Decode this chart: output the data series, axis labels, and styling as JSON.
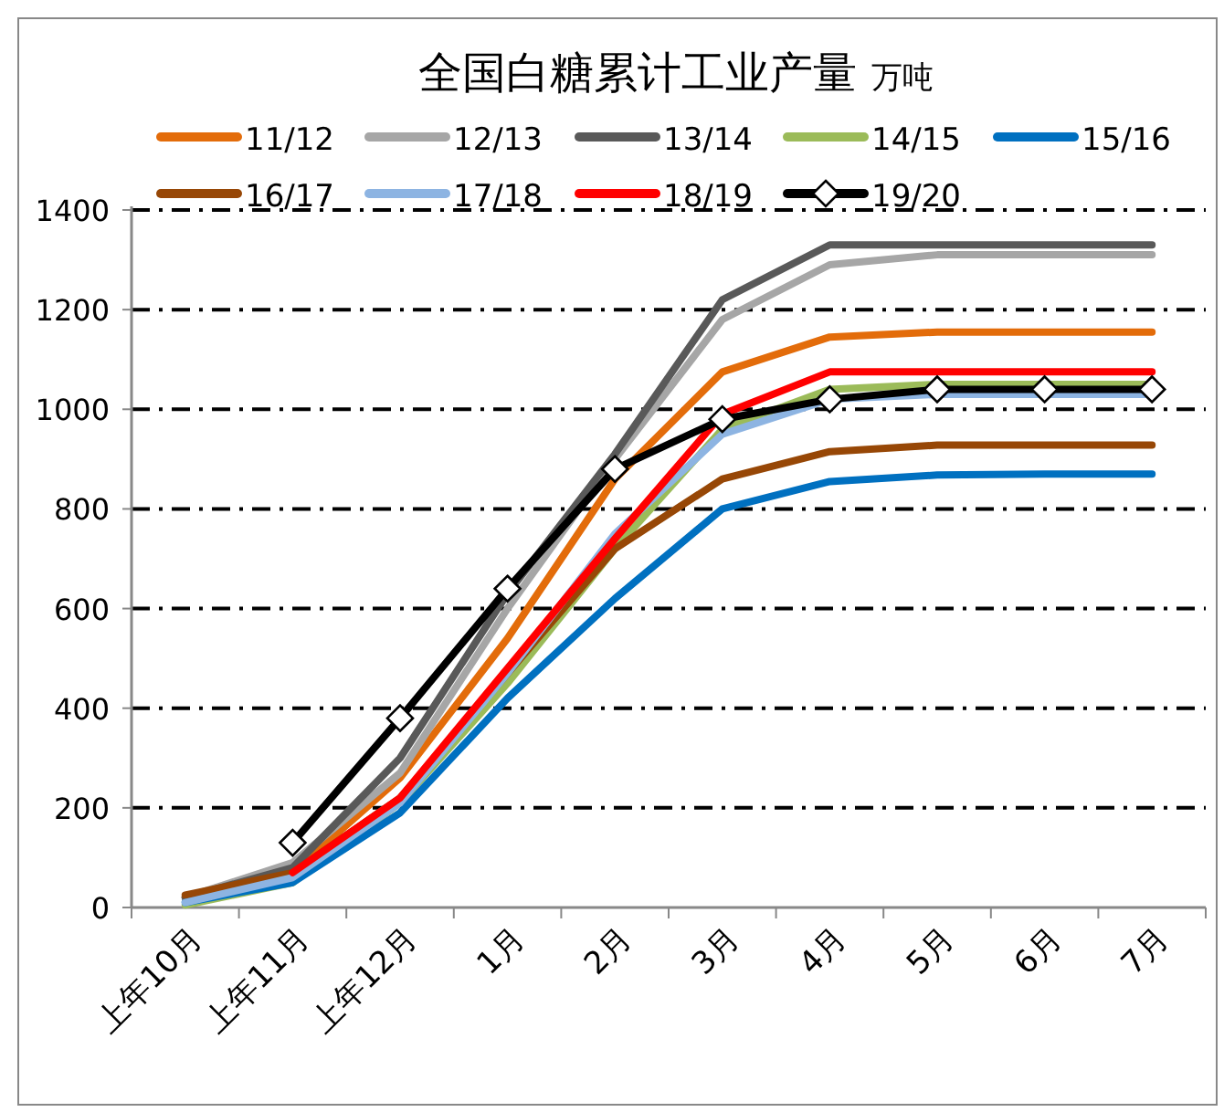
{
  "chart_data": {
    "type": "line",
    "title": "全国白糖累计工业产量",
    "subtitle": "万吨",
    "categories": [
      "上年10月",
      "上年11月",
      "上年12月",
      "1月",
      "2月",
      "3月",
      "4月",
      "5月",
      "6月",
      "7月"
    ],
    "ylim": [
      0,
      1400
    ],
    "yticks": [
      0,
      200,
      400,
      600,
      800,
      1000,
      1200,
      1400
    ],
    "grid": "y",
    "legend": "top",
    "marker": "none",
    "line_style": "solid",
    "series": [
      {
        "name": "11/12",
        "color": "#e36c0a",
        "values": [
          20,
          70,
          260,
          540,
          860,
          1075,
          1145,
          1155,
          1155,
          1155
        ]
      },
      {
        "name": "12/13",
        "color": "#a6a6a6",
        "values": [
          20,
          90,
          270,
          600,
          900,
          1180,
          1290,
          1310,
          1310,
          1310
        ]
      },
      {
        "name": "13/14",
        "color": "#595959",
        "values": [
          20,
          80,
          300,
          630,
          910,
          1220,
          1330,
          1330,
          1330,
          1330
        ]
      },
      {
        "name": "14/15",
        "color": "#9bbb59",
        "values": [
          5,
          50,
          210,
          450,
          720,
          960,
          1040,
          1050,
          1050,
          1050
        ]
      },
      {
        "name": "15/16",
        "color": "#0070c0",
        "values": [
          10,
          50,
          190,
          420,
          620,
          800,
          855,
          868,
          870,
          870
        ]
      },
      {
        "name": "16/17",
        "color": "#974706",
        "values": [
          25,
          70,
          220,
          470,
          720,
          860,
          915,
          928,
          928,
          928
        ]
      },
      {
        "name": "17/18",
        "color": "#8db4e2",
        "values": [
          10,
          60,
          210,
          470,
          750,
          950,
          1020,
          1030,
          1030,
          1030
        ]
      },
      {
        "name": "18/19",
        "color": "#ff0000",
        "values": [
          null,
          70,
          220,
          480,
          740,
          990,
          1075,
          1075,
          1075,
          1075
        ]
      },
      {
        "name": "19/20",
        "color": "#000000",
        "marker": "diamond",
        "values": [
          null,
          130,
          380,
          640,
          880,
          980,
          1020,
          1040,
          1040,
          1040
        ]
      }
    ]
  }
}
